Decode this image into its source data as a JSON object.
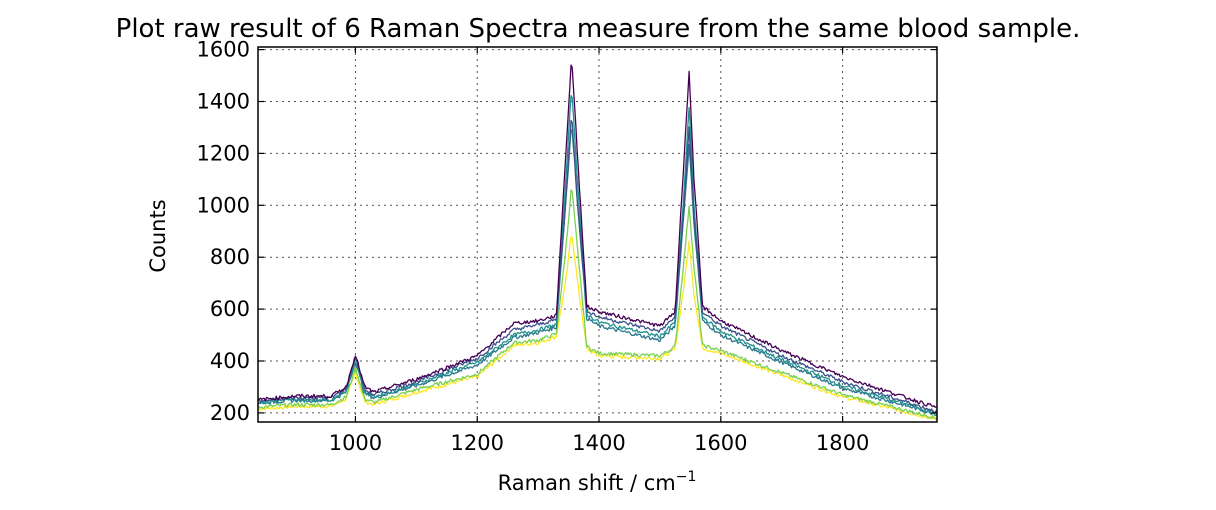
{
  "chart_data": {
    "type": "line",
    "title": "Plot raw result of 6 Raman Spectra measure from the same blood sample.",
    "xlabel": "Raman shift / cm",
    "xlabel_superscript": "−1",
    "ylabel": "Counts",
    "xlim": [
      840,
      1955
    ],
    "ylim": [
      165,
      1610
    ],
    "xticks": [
      1000,
      1200,
      1400,
      1600,
      1800
    ],
    "yticks": [
      200,
      400,
      600,
      800,
      1000,
      1200,
      1400,
      1600
    ],
    "grid": true,
    "legend": "none",
    "x_knots": [
      840,
      900,
      960,
      985,
      1000,
      1015,
      1030,
      1100,
      1200,
      1260,
      1300,
      1330,
      1345,
      1355,
      1365,
      1380,
      1400,
      1500,
      1525,
      1540,
      1548,
      1556,
      1570,
      1600,
      1700,
      1800,
      1955
    ],
    "series": [
      {
        "color": "#440154",
        "values": [
          250,
          265,
          265,
          300,
          425,
          300,
          280,
          330,
          420,
          545,
          555,
          575,
          1180,
          1575,
          1180,
          610,
          590,
          535,
          590,
          1200,
          1510,
          1100,
          610,
          555,
          440,
          340,
          220
        ]
      },
      {
        "color": "#3b528b",
        "values": [
          245,
          258,
          258,
          295,
          420,
          290,
          270,
          320,
          410,
          520,
          540,
          560,
          1000,
          1360,
          1000,
          595,
          570,
          515,
          570,
          1000,
          1300,
          950,
          590,
          535,
          420,
          320,
          205
        ]
      },
      {
        "color": "#21918c",
        "values": [
          240,
          252,
          252,
          285,
          410,
          280,
          262,
          312,
          395,
          500,
          520,
          540,
          1080,
          1460,
          1080,
          580,
          550,
          495,
          550,
          1070,
          1380,
          1000,
          570,
          515,
          405,
          305,
          200
        ]
      },
      {
        "color": "#2a788e",
        "values": [
          238,
          248,
          248,
          280,
          400,
          275,
          258,
          305,
          385,
          490,
          510,
          530,
          1000,
          1320,
          1000,
          565,
          535,
          480,
          535,
          990,
          1230,
          930,
          555,
          500,
          395,
          295,
          195
        ]
      },
      {
        "color": "#7ad151",
        "values": [
          222,
          232,
          232,
          262,
          375,
          255,
          240,
          290,
          350,
          470,
          480,
          505,
          820,
          1080,
          820,
          455,
          430,
          420,
          455,
          800,
          1000,
          760,
          460,
          440,
          355,
          270,
          180
        ]
      },
      {
        "color": "#fde725",
        "values": [
          215,
          225,
          225,
          255,
          355,
          245,
          232,
          280,
          340,
          460,
          470,
          495,
          700,
          900,
          700,
          445,
          420,
          410,
          445,
          700,
          860,
          660,
          450,
          430,
          345,
          262,
          175
        ]
      }
    ]
  }
}
